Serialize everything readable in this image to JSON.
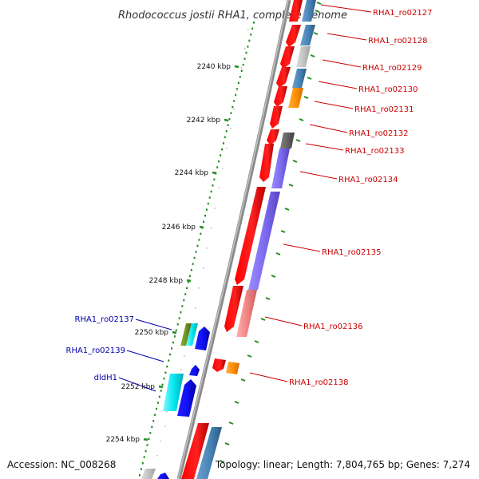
{
  "map": {
    "title": "Rhodococcus jostii RHA1, complete genome",
    "accession": "Accession: NC_008268",
    "topology": "Topology: linear; Length: 7,804,765 bp; Genes: 7,274"
  },
  "ruler_ticks": [
    "2240 kbp",
    "2242 kbp",
    "2244 kbp",
    "2246 kbp",
    "2248 kbp",
    "2250 kbp",
    "2252 kbp",
    "2254 kbp"
  ],
  "gene_labels": [
    {
      "text": "RHA1_ro02127",
      "color": "#cc0000"
    },
    {
      "text": "RHA1_ro02128",
      "color": "#cc0000"
    },
    {
      "text": "RHA1_ro02129",
      "color": "#cc0000"
    },
    {
      "text": "RHA1_ro02130",
      "color": "#cc0000"
    },
    {
      "text": "RHA1_ro02131",
      "color": "#cc0000"
    },
    {
      "text": "RHA1_ro02132",
      "color": "#cc0000"
    },
    {
      "text": "RHA1_ro02133",
      "color": "#cc0000"
    },
    {
      "text": "RHA1_ro02134",
      "color": "#cc0000"
    },
    {
      "text": "RHA1_ro02135",
      "color": "#cc0000"
    },
    {
      "text": "RHA1_ro02136",
      "color": "#cc0000"
    },
    {
      "text": "RHA1_ro02137",
      "color": "#0000aa"
    },
    {
      "text": "RHA1_ro02138",
      "color": "#cc0000"
    },
    {
      "text": "RHA1_ro02139",
      "color": "#0000aa"
    },
    {
      "text": "dldH1",
      "color": "#0000aa"
    }
  ],
  "colors": {
    "forward_gene": "#ff0000",
    "reverse_gene": "#0000ee",
    "backbone": "#777777",
    "ruler_dots": "#228b22",
    "cog_steelblue": "#4682b4",
    "cog_silver": "#c0c0c0",
    "cog_orange": "#ff8c00",
    "cog_darkgray": "#606060",
    "cog_slateblue": "#7b68ee",
    "cog_salmon": "#f08080",
    "cog_olive": "#6b8e23",
    "cog_cyan": "#00e5ee"
  }
}
